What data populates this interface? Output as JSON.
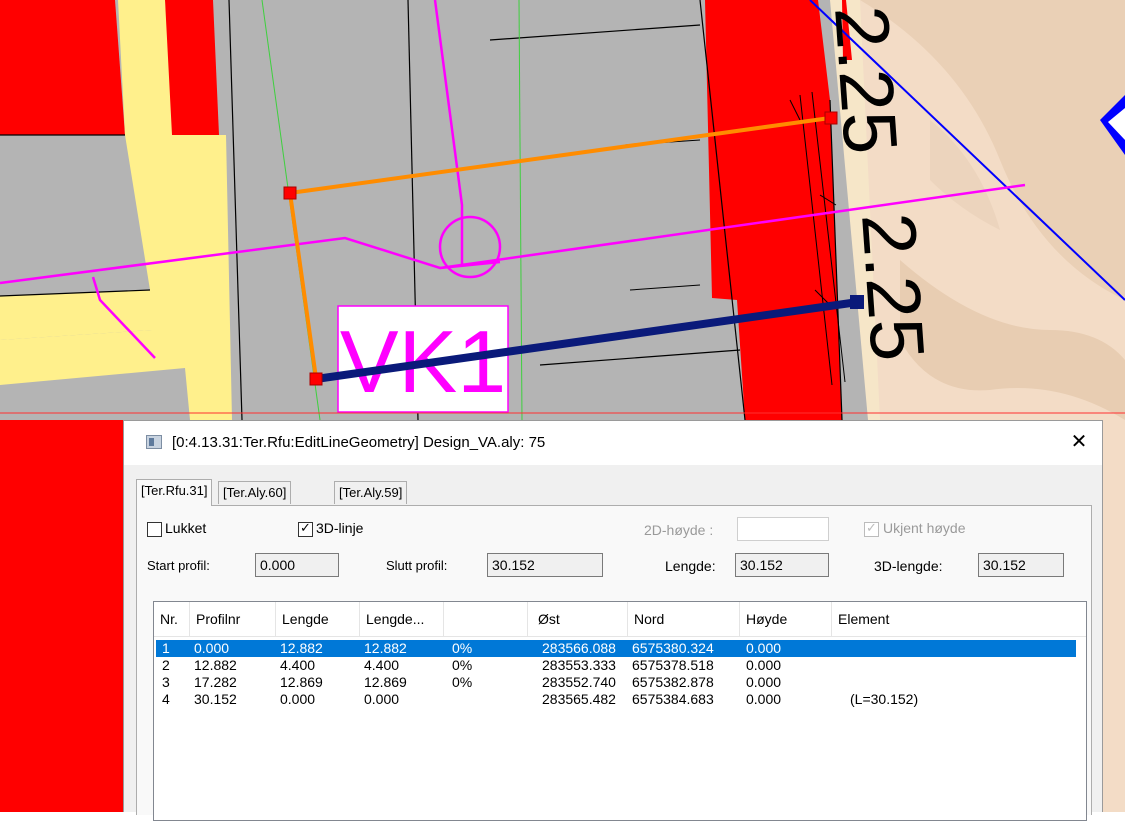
{
  "map": {
    "label_vk1": "VK1",
    "dim_labels": [
      "2.25",
      "2.25"
    ],
    "colors": {
      "road_gray": "#b4b4b4",
      "building_red": "#ff0000",
      "path_yellow": "#fff08c",
      "terrain": "#f3dcc6",
      "pipe_orange": "#ff8c00",
      "pipe_navy": "#0a1a7a",
      "line_magenta": "#ff00ff",
      "line_blue": "#0000ff"
    }
  },
  "dialog": {
    "title": "[0:4.13.31:Ter.Rfu:EditLineGeometry] Design_VA.aly: 75",
    "close_icon": "close-icon",
    "tabs": [
      "[Ter.Rfu.31]",
      "[Ter.Aly.60]",
      "[Ter.Aly.59]"
    ],
    "active_tab": 0,
    "lukket_label": "Lukket",
    "lukket_checked": false,
    "linje3d_label": "3D-linje",
    "linje3d_checked": true,
    "hoyde2d_label": "2D-høyde :",
    "hoyde2d_value": "",
    "ukjent_label": "Ukjent høyde",
    "ukjent_checked": true,
    "start_label": "Start profil:",
    "start_value": "0.000",
    "slutt_label": "Slutt profil:",
    "slutt_value": "30.152",
    "lengde_label": "Lengde:",
    "lengde_value": "30.152",
    "lengde3d_label": "3D-lengde:",
    "lengde3d_value": "30.152",
    "columns": [
      "Nr.",
      "Profilnr",
      "Lengde",
      "Lengde...",
      "",
      "Øst",
      "Nord",
      "Høyde",
      "Element"
    ],
    "rows": [
      {
        "nr": "1",
        "profil": "0.000",
        "lengde": "12.882",
        "lengde2": "12.882",
        "pct": "0%",
        "ost": "283566.088",
        "nord": "6575380.324",
        "hoyde": "0.000",
        "element": ""
      },
      {
        "nr": "2",
        "profil": "12.882",
        "lengde": "4.400",
        "lengde2": "4.400",
        "pct": "0%",
        "ost": "283553.333",
        "nord": "6575378.518",
        "hoyde": "0.000",
        "element": ""
      },
      {
        "nr": "3",
        "profil": "17.282",
        "lengde": "12.869",
        "lengde2": "12.869",
        "pct": "0%",
        "ost": "283552.740",
        "nord": "6575382.878",
        "hoyde": "0.000",
        "element": ""
      },
      {
        "nr": "4",
        "profil": "30.152",
        "lengde": "0.000",
        "lengde2": "0.000",
        "pct": "",
        "ost": "283565.482",
        "nord": "6575384.683",
        "hoyde": "0.000",
        "element": "(L=30.152)"
      }
    ],
    "selected_row": 0
  }
}
